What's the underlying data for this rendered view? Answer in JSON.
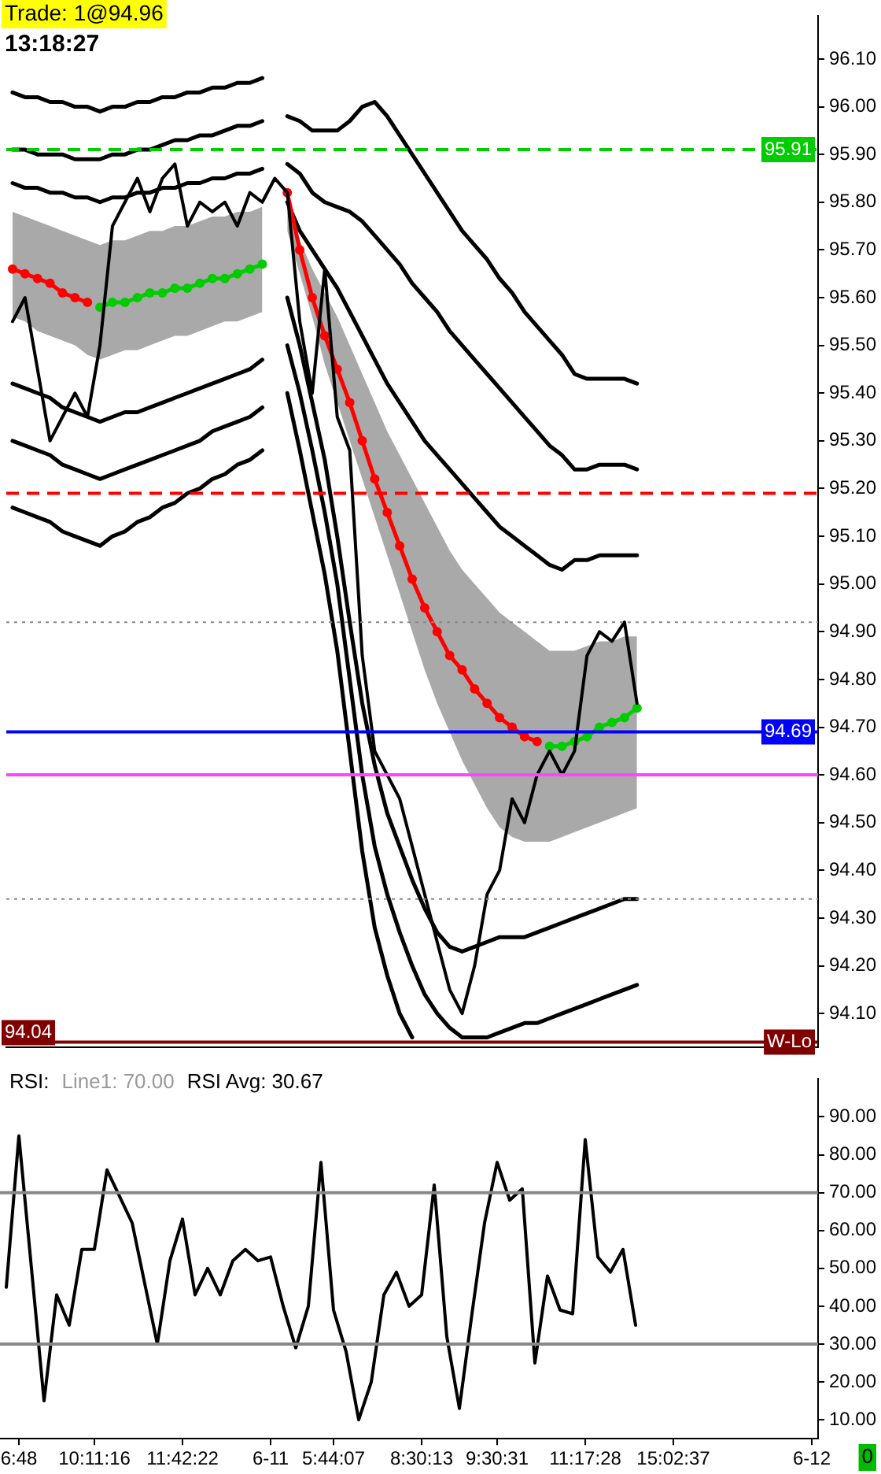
{
  "chart_data": [
    {
      "type": "line",
      "categories": [
        null,
        null,
        null,
        null,
        null,
        null,
        null,
        null,
        null,
        null,
        null,
        null,
        null,
        null,
        null,
        null,
        null,
        null,
        null,
        null,
        null,
        null,
        null,
        null,
        null,
        null,
        null,
        null,
        null,
        null,
        null,
        null,
        null,
        null,
        null,
        null,
        null,
        null,
        null,
        null,
        null,
        null,
        null,
        null,
        null,
        null,
        null,
        null,
        null,
        null,
        null,
        null,
        null,
        null,
        null,
        null,
        null,
        null,
        null,
        null,
        null,
        null,
        null,
        null,
        null
      ],
      "ylim": [
        94.03,
        96.19
      ],
      "yticks": [
        {
          "value": 94.1,
          "label": "94.10"
        },
        {
          "value": 94.2,
          "label": "94.20"
        },
        {
          "value": 94.3,
          "label": "94.30"
        },
        {
          "value": 94.4,
          "label": "94.40"
        },
        {
          "value": 94.5,
          "label": "94.50"
        },
        {
          "value": 94.6,
          "label": "94.60"
        },
        {
          "value": 94.7,
          "label": "94.70"
        },
        {
          "value": 94.8,
          "label": "94.80"
        },
        {
          "value": 94.9,
          "label": "94.90"
        },
        {
          "value": 95,
          "label": "95.00"
        },
        {
          "value": 95.1,
          "label": "95.10"
        },
        {
          "value": 95.2,
          "label": "95.20"
        },
        {
          "value": 95.3,
          "label": "95.30"
        },
        {
          "value": 95.4,
          "label": "95.40"
        },
        {
          "value": 95.5,
          "label": "95.50"
        },
        {
          "value": 95.6,
          "label": "95.60"
        },
        {
          "value": 95.7,
          "label": "95.70"
        },
        {
          "value": 95.8,
          "label": "95.80"
        },
        {
          "value": 95.9,
          "label": "95.90"
        },
        {
          "value": 96,
          "label": "96.00"
        },
        {
          "value": 96.1,
          "label": "96.10"
        }
      ],
      "tick_labels": "y",
      "grid": false,
      "legend": false,
      "marker": "none",
      "annotations": [
        "Trade: 1@94.96",
        "13:18:27",
        "94.04"
      ],
      "ref_lines": [
        {
          "axis": "y",
          "value": 95.91,
          "label": "95.91",
          "color": "#00cc00",
          "line_style": "dashed"
        },
        {
          "axis": "y",
          "value": 95.19,
          "color": "#ff0000",
          "line_style": "dashed"
        },
        {
          "axis": "y",
          "value": 94.92,
          "color": "#888888",
          "line_style": "dotted"
        },
        {
          "axis": "y",
          "value": 94.69,
          "label": "94.69",
          "color": "#0000ff",
          "line_style": "solid"
        },
        {
          "axis": "y",
          "value": 94.6,
          "color": "#ff44ff",
          "line_style": "solid"
        },
        {
          "axis": "y",
          "value": 94.34,
          "color": "#888888",
          "line_style": "dotted"
        },
        {
          "axis": "y",
          "value": 94.04,
          "label": "W-Lo",
          "color": "#800000",
          "line_style": "solid"
        }
      ],
      "series": [
        {
          "color": "#000000",
          "values": [
            95.55,
            95.6,
            95.45,
            95.3,
            95.35,
            95.4,
            95.35,
            95.5,
            95.75,
            95.8,
            95.85,
            95.78,
            95.85,
            95.88,
            95.75,
            95.8,
            95.78,
            95.8,
            95.75,
            95.82,
            95.8,
            95.85,
            95.82,
            95.55,
            95.4,
            95.66,
            95.35,
            95.28,
            94.85,
            94.65,
            94.6,
            94.55,
            94.45,
            94.35,
            94.25,
            94.15,
            94.1,
            94.2,
            94.35,
            94.4,
            94.55,
            94.5,
            94.6,
            94.65,
            94.6,
            94.65,
            94.85,
            94.9,
            94.88,
            94.92,
            94.75,
            null,
            null,
            null,
            null,
            null,
            null,
            null,
            null,
            null,
            null,
            null,
            null,
            null,
            null
          ]
        },
        {
          "color": "#00cc00",
          "marker": "circle",
          "values": [
            null,
            null,
            null,
            null,
            null,
            null,
            null,
            95.58,
            95.59,
            95.59,
            95.6,
            95.61,
            95.61,
            95.62,
            95.62,
            95.63,
            95.64,
            95.64,
            95.65,
            95.66,
            95.67,
            null,
            null,
            null,
            null,
            null,
            null,
            null,
            null,
            null,
            null,
            null,
            null,
            null,
            null,
            null,
            null,
            null,
            null,
            null,
            null,
            null,
            null,
            94.66,
            94.66,
            94.67,
            94.68,
            94.7,
            94.71,
            94.72,
            94.74,
            null,
            null,
            null,
            null,
            null,
            null,
            null,
            null,
            null,
            null,
            null,
            null,
            null,
            null
          ]
        },
        {
          "color": "#ff0000",
          "marker": "circle",
          "values": [
            95.66,
            95.65,
            95.64,
            95.63,
            95.61,
            95.6,
            95.59,
            null,
            null,
            null,
            null,
            null,
            null,
            null,
            null,
            null,
            null,
            null,
            null,
            null,
            null,
            null,
            95.82,
            95.7,
            95.6,
            95.52,
            95.45,
            95.38,
            95.3,
            95.22,
            95.15,
            95.08,
            95.01,
            94.95,
            94.9,
            94.85,
            94.82,
            94.78,
            94.75,
            94.72,
            94.7,
            94.68,
            94.67,
            null,
            null,
            null,
            null,
            null,
            null,
            null,
            null,
            null,
            null,
            null,
            null,
            null,
            null,
            null,
            null,
            null,
            null,
            null,
            null,
            null,
            null
          ],
          "upper": [
            95.78,
            95.77,
            95.76,
            95.75,
            95.74,
            95.73,
            95.72,
            95.71,
            95.72,
            95.72,
            95.73,
            95.74,
            95.74,
            95.75,
            95.75,
            95.76,
            95.77,
            95.77,
            95.78,
            95.78,
            95.79,
            null,
            95.78,
            95.72,
            95.66,
            95.61,
            95.56,
            95.5,
            95.44,
            95.38,
            95.32,
            95.27,
            95.22,
            95.17,
            95.12,
            95.07,
            95.03,
            95.0,
            94.97,
            94.94,
            94.92,
            94.9,
            94.88,
            94.86,
            94.86,
            94.86,
            94.87,
            94.88,
            94.88,
            94.89,
            94.89,
            null,
            null,
            null,
            null,
            null,
            null,
            null,
            null,
            null,
            null,
            null,
            null,
            null,
            null
          ],
          "lower": [
            95.56,
            95.55,
            95.53,
            95.52,
            95.51,
            95.5,
            95.48,
            95.47,
            95.48,
            95.49,
            95.49,
            95.5,
            95.51,
            95.52,
            95.52,
            95.53,
            95.54,
            95.55,
            95.55,
            95.56,
            95.57,
            null,
            95.74,
            95.65,
            95.56,
            95.46,
            95.38,
            95.3,
            95.22,
            95.14,
            95.06,
            94.98,
            94.9,
            94.82,
            94.75,
            94.69,
            94.63,
            94.58,
            94.53,
            94.49,
            94.47,
            94.46,
            94.46,
            94.46,
            94.47,
            94.48,
            94.49,
            94.5,
            94.51,
            94.52,
            94.53,
            null,
            null,
            null,
            null,
            null,
            null,
            null,
            null,
            null,
            null,
            null,
            null,
            null,
            null
          ]
        },
        {
          "color": "#000000",
          "values": [
            96.03,
            96.02,
            96.02,
            96.01,
            96.01,
            96.0,
            96.0,
            95.99,
            96.0,
            96.0,
            96.01,
            96.01,
            96.02,
            96.02,
            96.03,
            96.03,
            96.04,
            96.04,
            96.05,
            96.05,
            96.06,
            null,
            95.98,
            95.97,
            95.95,
            95.95,
            95.95,
            95.97,
            96.0,
            96.01,
            95.98,
            95.94,
            95.9,
            95.86,
            95.82,
            95.78,
            95.74,
            95.71,
            95.68,
            95.64,
            95.61,
            95.57,
            95.54,
            95.51,
            95.48,
            95.44,
            95.43,
            95.43,
            95.43,
            95.43,
            95.42,
            null,
            null,
            null,
            null,
            null,
            null,
            null,
            null,
            null,
            null,
            null,
            null,
            null,
            null
          ]
        },
        {
          "color": "#000000",
          "values": [
            95.91,
            95.91,
            95.9,
            95.9,
            95.9,
            95.89,
            95.89,
            95.89,
            95.9,
            95.9,
            95.91,
            95.91,
            95.92,
            95.93,
            95.93,
            95.94,
            95.94,
            95.95,
            95.96,
            95.96,
            95.97,
            null,
            95.88,
            95.86,
            95.82,
            95.8,
            95.79,
            95.78,
            95.76,
            95.73,
            95.7,
            95.67,
            95.63,
            95.6,
            95.57,
            95.53,
            95.5,
            95.47,
            95.44,
            95.41,
            95.38,
            95.35,
            95.32,
            95.29,
            95.27,
            95.24,
            95.24,
            95.25,
            95.25,
            95.25,
            95.24,
            null,
            null,
            null,
            null,
            null,
            null,
            null,
            null,
            null,
            null,
            null,
            null,
            null,
            null
          ]
        },
        {
          "color": "#000000",
          "values": [
            95.84,
            95.83,
            95.83,
            95.82,
            95.82,
            95.81,
            95.81,
            95.8,
            95.81,
            95.81,
            95.82,
            95.82,
            95.83,
            95.83,
            95.84,
            95.84,
            95.85,
            95.85,
            95.86,
            95.86,
            95.87,
            null,
            95.8,
            95.74,
            95.7,
            95.66,
            95.62,
            95.57,
            95.52,
            95.47,
            95.42,
            95.38,
            95.34,
            95.3,
            95.27,
            95.24,
            95.21,
            95.18,
            95.15,
            95.12,
            95.1,
            95.08,
            95.06,
            95.04,
            95.03,
            95.05,
            95.05,
            95.06,
            95.06,
            95.06,
            95.06,
            null,
            null,
            null,
            null,
            null,
            null,
            null,
            null,
            null,
            null,
            null,
            null,
            null,
            null
          ]
        },
        {
          "color": "#000000",
          "values": [
            95.42,
            95.41,
            95.4,
            95.39,
            95.37,
            95.36,
            95.35,
            95.34,
            95.35,
            95.36,
            95.36,
            95.37,
            95.38,
            95.39,
            95.4,
            95.41,
            95.42,
            95.43,
            95.44,
            95.45,
            95.47,
            null,
            95.6,
            95.5,
            95.38,
            95.26,
            95.1,
            94.92,
            94.75,
            94.62,
            94.52,
            94.45,
            94.38,
            94.32,
            94.27,
            94.24,
            94.23,
            94.24,
            94.25,
            94.26,
            94.26,
            94.26,
            94.27,
            94.28,
            94.29,
            94.3,
            94.31,
            94.32,
            94.33,
            94.34,
            94.34,
            null,
            null,
            null,
            null,
            null,
            null,
            null,
            null,
            null,
            null,
            null,
            null,
            null,
            null
          ]
        },
        {
          "color": "#000000",
          "values": [
            95.3,
            95.29,
            95.28,
            95.27,
            95.25,
            95.24,
            95.23,
            95.22,
            95.23,
            95.24,
            95.25,
            95.26,
            95.27,
            95.28,
            95.29,
            95.3,
            95.32,
            95.33,
            95.34,
            95.35,
            95.37,
            null,
            95.5,
            95.4,
            95.28,
            95.15,
            95.0,
            94.8,
            94.6,
            94.45,
            94.35,
            94.27,
            94.2,
            94.14,
            94.1,
            94.07,
            94.05,
            94.05,
            94.05,
            94.06,
            94.07,
            94.08,
            94.08,
            94.09,
            94.1,
            94.11,
            94.12,
            94.13,
            94.14,
            94.15,
            94.16,
            null,
            null,
            null,
            null,
            null,
            null,
            null,
            null,
            null,
            null,
            null,
            null,
            null,
            null
          ]
        },
        {
          "color": "#000000",
          "values": [
            95.16,
            95.15,
            95.14,
            95.13,
            95.11,
            95.1,
            95.09,
            95.08,
            95.1,
            95.11,
            95.13,
            95.14,
            95.16,
            95.17,
            95.19,
            95.2,
            95.22,
            95.23,
            95.25,
            95.26,
            95.28,
            null,
            95.4,
            95.28,
            95.15,
            95.02,
            94.86,
            94.65,
            94.44,
            94.28,
            94.18,
            94.1,
            94.05,
            null,
            null,
            null,
            null,
            null,
            null,
            null,
            null,
            null,
            null,
            null,
            null,
            null,
            null,
            null,
            null,
            null,
            null,
            null,
            null,
            null,
            null,
            null,
            null,
            null,
            null,
            null,
            null,
            null,
            null,
            null,
            null
          ]
        }
      ]
    },
    {
      "type": "line",
      "categories": [
        null,
        "6:48",
        null,
        null,
        null,
        null,
        null,
        "10:11:16",
        null,
        null,
        null,
        null,
        null,
        null,
        "11:42:22",
        null,
        null,
        null,
        null,
        null,
        null,
        "6-11",
        null,
        null,
        null,
        null,
        "5:44:07",
        null,
        null,
        null,
        null,
        null,
        null,
        "8:30:13",
        null,
        null,
        null,
        null,
        null,
        "9:30:31",
        null,
        null,
        null,
        null,
        null,
        null,
        "11:17:28",
        null,
        null,
        null,
        null,
        null,
        null,
        "15:02:37",
        null,
        null,
        null,
        null,
        null,
        null,
        null,
        null,
        null,
        null,
        "6-12"
      ],
      "ylim": [
        5,
        100
      ],
      "yticks": [
        {
          "value": 10,
          "label": "10.00"
        },
        {
          "value": 20,
          "label": "20.00"
        },
        {
          "value": 30,
          "label": "30.00"
        },
        {
          "value": 40,
          "label": "40.00"
        },
        {
          "value": 50,
          "label": "50.00"
        },
        {
          "value": 60,
          "label": "60.00"
        },
        {
          "value": 70,
          "label": "70.00"
        },
        {
          "value": 80,
          "label": "80.00"
        },
        {
          "value": 90,
          "label": "90.00"
        }
      ],
      "grid": false,
      "legend": false,
      "marker": "none",
      "annotations": [
        "RSI:",
        "Line1: 70.00",
        "RSI Avg: 30.67",
        "0"
      ],
      "ref_lines": [
        {
          "axis": "y",
          "value": 70,
          "color": "#888888",
          "line_style": "solid"
        },
        {
          "axis": "y",
          "value": 30,
          "color": "#888888",
          "line_style": "solid"
        }
      ],
      "series": [
        {
          "color": "#000000",
          "values": [
            45,
            85,
            50,
            15,
            43,
            35,
            55,
            55,
            76,
            69,
            62,
            46,
            30,
            52,
            63,
            43,
            50,
            43,
            52,
            55,
            52,
            53,
            40,
            29,
            40,
            78,
            39,
            28,
            10,
            20,
            43,
            49,
            40,
            43,
            72,
            32,
            13,
            38,
            62,
            78,
            68,
            71,
            25,
            48,
            39,
            38,
            84,
            53,
            49,
            55,
            35,
            null,
            null,
            null,
            null,
            null,
            null,
            null,
            null,
            null,
            null,
            null,
            null,
            null,
            null
          ]
        }
      ]
    }
  ]
}
